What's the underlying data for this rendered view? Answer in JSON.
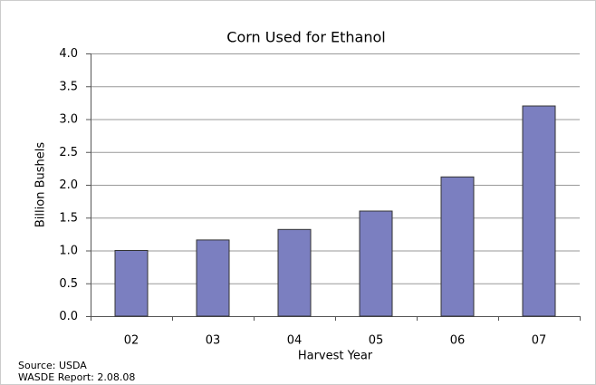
{
  "chart_data": {
    "type": "bar",
    "title": "Corn Used for Ethanol",
    "x_label": "Harvest Year",
    "y_label": "Billion Bushels",
    "categories": [
      "02",
      "03",
      "04",
      "05",
      "06",
      "07"
    ],
    "values": [
      1.0,
      1.16,
      1.32,
      1.6,
      2.12,
      3.2
    ],
    "color": "#7b7fc0",
    "ylim": [
      0,
      4
    ],
    "yticks": [
      {
        "value": 0,
        "label": "0.0"
      },
      0.5,
      {
        "value": 1,
        "label": "1.0"
      },
      1.5,
      {
        "value": 2,
        "label": "2.0"
      },
      2.5,
      {
        "value": 3,
        "label": "3.0"
      },
      3.5,
      {
        "value": 4,
        "label": "4.0"
      }
    ],
    "grid": true,
    "source": [
      "Source:  USDA",
      "WASDE Report:  2.08.08"
    ]
  }
}
